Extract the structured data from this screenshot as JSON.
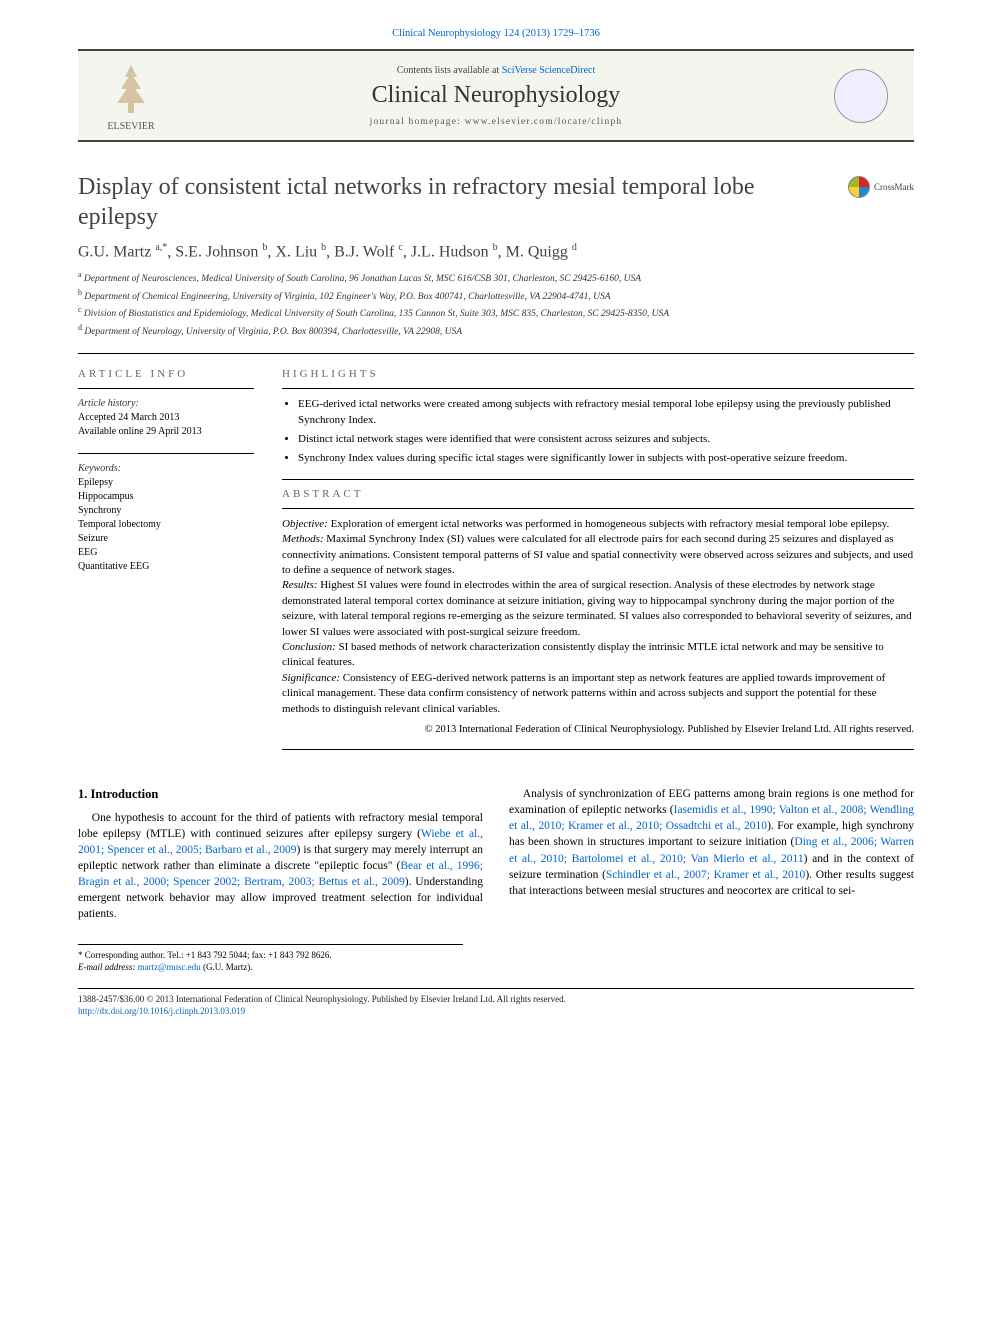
{
  "journal_ref": "Clinical Neurophysiology 124 (2013) 1729–1736",
  "banner": {
    "contents_prefix": "Contents lists available at ",
    "contents_link": "SciVerse ScienceDirect",
    "journal_name": "Clinical Neurophysiology",
    "homepage_prefix": "journal homepage: ",
    "homepage_url": "www.elsevier.com/locate/clinph",
    "publisher_label": "ELSEVIER"
  },
  "article": {
    "title": "Display of consistent ictal networks in refractory mesial temporal lobe epilepsy",
    "crossmark_label": "CrossMark",
    "authors_html": "G.U. Martz <sup>a,*</sup>, S.E. Johnson <sup>b</sup>, X. Liu <sup>b</sup>, B.J. Wolf <sup>c</sup>, J.L. Hudson <sup>b</sup>, M. Quigg <sup>d</sup>",
    "affiliations": [
      "a Department of Neurosciences, Medical University of South Carolina, 96 Jonathan Lucas St, MSC 616/CSB 301, Charleston, SC 29425-6160, USA",
      "b Department of Chemical Engineering, University of Virginia, 102 Engineer's Way, P.O. Box 400741, Charlottesville, VA 22904-4741, USA",
      "c Division of Biostatistics and Epidemiology, Medical University of South Carolina, 135 Cannon St, Suite 303, MSC 835, Charleston, SC 29425-8350, USA",
      "d Department of Neurology, University of Virginia, P.O. Box 800394, Charlottesville, VA 22908, USA"
    ]
  },
  "article_info": {
    "label": "ARTICLE INFO",
    "history_label": "Article history:",
    "accepted": "Accepted 24 March 2013",
    "online": "Available online 29 April 2013",
    "keywords_label": "Keywords:",
    "keywords": [
      "Epilepsy",
      "Hippocampus",
      "Synchrony",
      "Temporal lobectomy",
      "Seizure",
      "EEG",
      "Quantitative EEG"
    ]
  },
  "highlights": {
    "label": "HIGHLIGHTS",
    "items": [
      "EEG-derived ictal networks were created among subjects with refractory mesial temporal lobe epilepsy using the previously published Synchrony Index.",
      "Distinct ictal network stages were identified that were consistent across seizures and subjects.",
      "Synchrony Index values during specific ictal stages were significantly lower in subjects with post-operative seizure freedom."
    ]
  },
  "abstract": {
    "label": "ABSTRACT",
    "objective_label": "Objective:",
    "objective": " Exploration of emergent ictal networks was performed in homogeneous subjects with refractory mesial temporal lobe epilepsy.",
    "methods_label": "Methods:",
    "methods": " Maximal Synchrony Index (SI) values were calculated for all electrode pairs for each second during 25 seizures and displayed as connectivity animations. Consistent temporal patterns of SI value and spatial connectivity were observed across seizures and subjects, and used to define a sequence of network stages.",
    "results_label": "Results:",
    "results": " Highest SI values were found in electrodes within the area of surgical resection. Analysis of these electrodes by network stage demonstrated lateral temporal cortex dominance at seizure initiation, giving way to hippocampal synchrony during the major portion of the seizure, with lateral temporal regions re-emerging as the seizure terminated. SI values also corresponded to behavioral severity of seizures, and lower SI values were associated with post-surgical seizure freedom.",
    "conclusion_label": "Conclusion:",
    "conclusion": " SI based methods of network characterization consistently display the intrinsic MTLE ictal network and may be sensitive to clinical features.",
    "significance_label": "Significance:",
    "significance": " Consistency of EEG-derived network patterns is an important step as network features are applied towards improvement of clinical management. These data confirm consistency of network patterns within and across subjects and support the potential for these methods to distinguish relevant clinical variables.",
    "copyright": "© 2013 International Federation of Clinical Neurophysiology. Published by Elsevier Ireland Ltd. All rights reserved."
  },
  "body": {
    "intro_heading": "1. Introduction",
    "para1_a": "One hypothesis to account for the third of patients with refractory mesial temporal lobe epilepsy (MTLE) with continued seizures after epilepsy surgery (",
    "para1_ref1": "Wiebe et al., 2001; Spencer et al., 2005; Barbaro et al., 2009",
    "para1_b": ") is that surgery may merely interrupt an epileptic network rather than eliminate a discrete \"epileptic focus\" (",
    "para1_ref2": "Bear et al., 1996; Bragin et al., 2000; Spencer 2002; Bertram, 2003;",
    "para1_ref2b": "Bettus et al., 2009",
    "para1_c": "). Understanding emergent network behavior may allow improved treatment selection for individual patients.",
    "para2_a": "Analysis of synchronization of EEG patterns among brain regions is one method for examination of epileptic networks (",
    "para2_ref1": "Iasemidis et al., 1990; Valton et al., 2008; Wendling et al., 2010; Kramer et al., 2010; Ossadtchi et al., 2010",
    "para2_b": "). For example, high synchrony has been shown in structures important to seizure initiation (",
    "para2_ref2": "Ding et al., 2006; Warren et al., 2010; Bartolomei et al., 2010; Van Mierlo et al., 2011",
    "para2_c": ") and in the context of seizure termination (",
    "para2_ref3": "Schindler et al., 2007; Kramer et al., 2010",
    "para2_d": "). Other results suggest that interactions between mesial structures and neocortex are critical to sei-"
  },
  "footer": {
    "corr_label": "* Corresponding author. Tel.: +1 843 792 5044; fax: +1 843 792 8626.",
    "email_label": "E-mail address:",
    "email": "martz@musc.edu",
    "email_who": "(G.U. Martz).",
    "issn_line": "1388-2457/$36.00 © 2013 International Federation of Clinical Neurophysiology. Published by Elsevier Ireland Ltd. All rights reserved.",
    "doi": "http://dx.doi.org/10.1016/j.clinph.2013.03.019"
  }
}
